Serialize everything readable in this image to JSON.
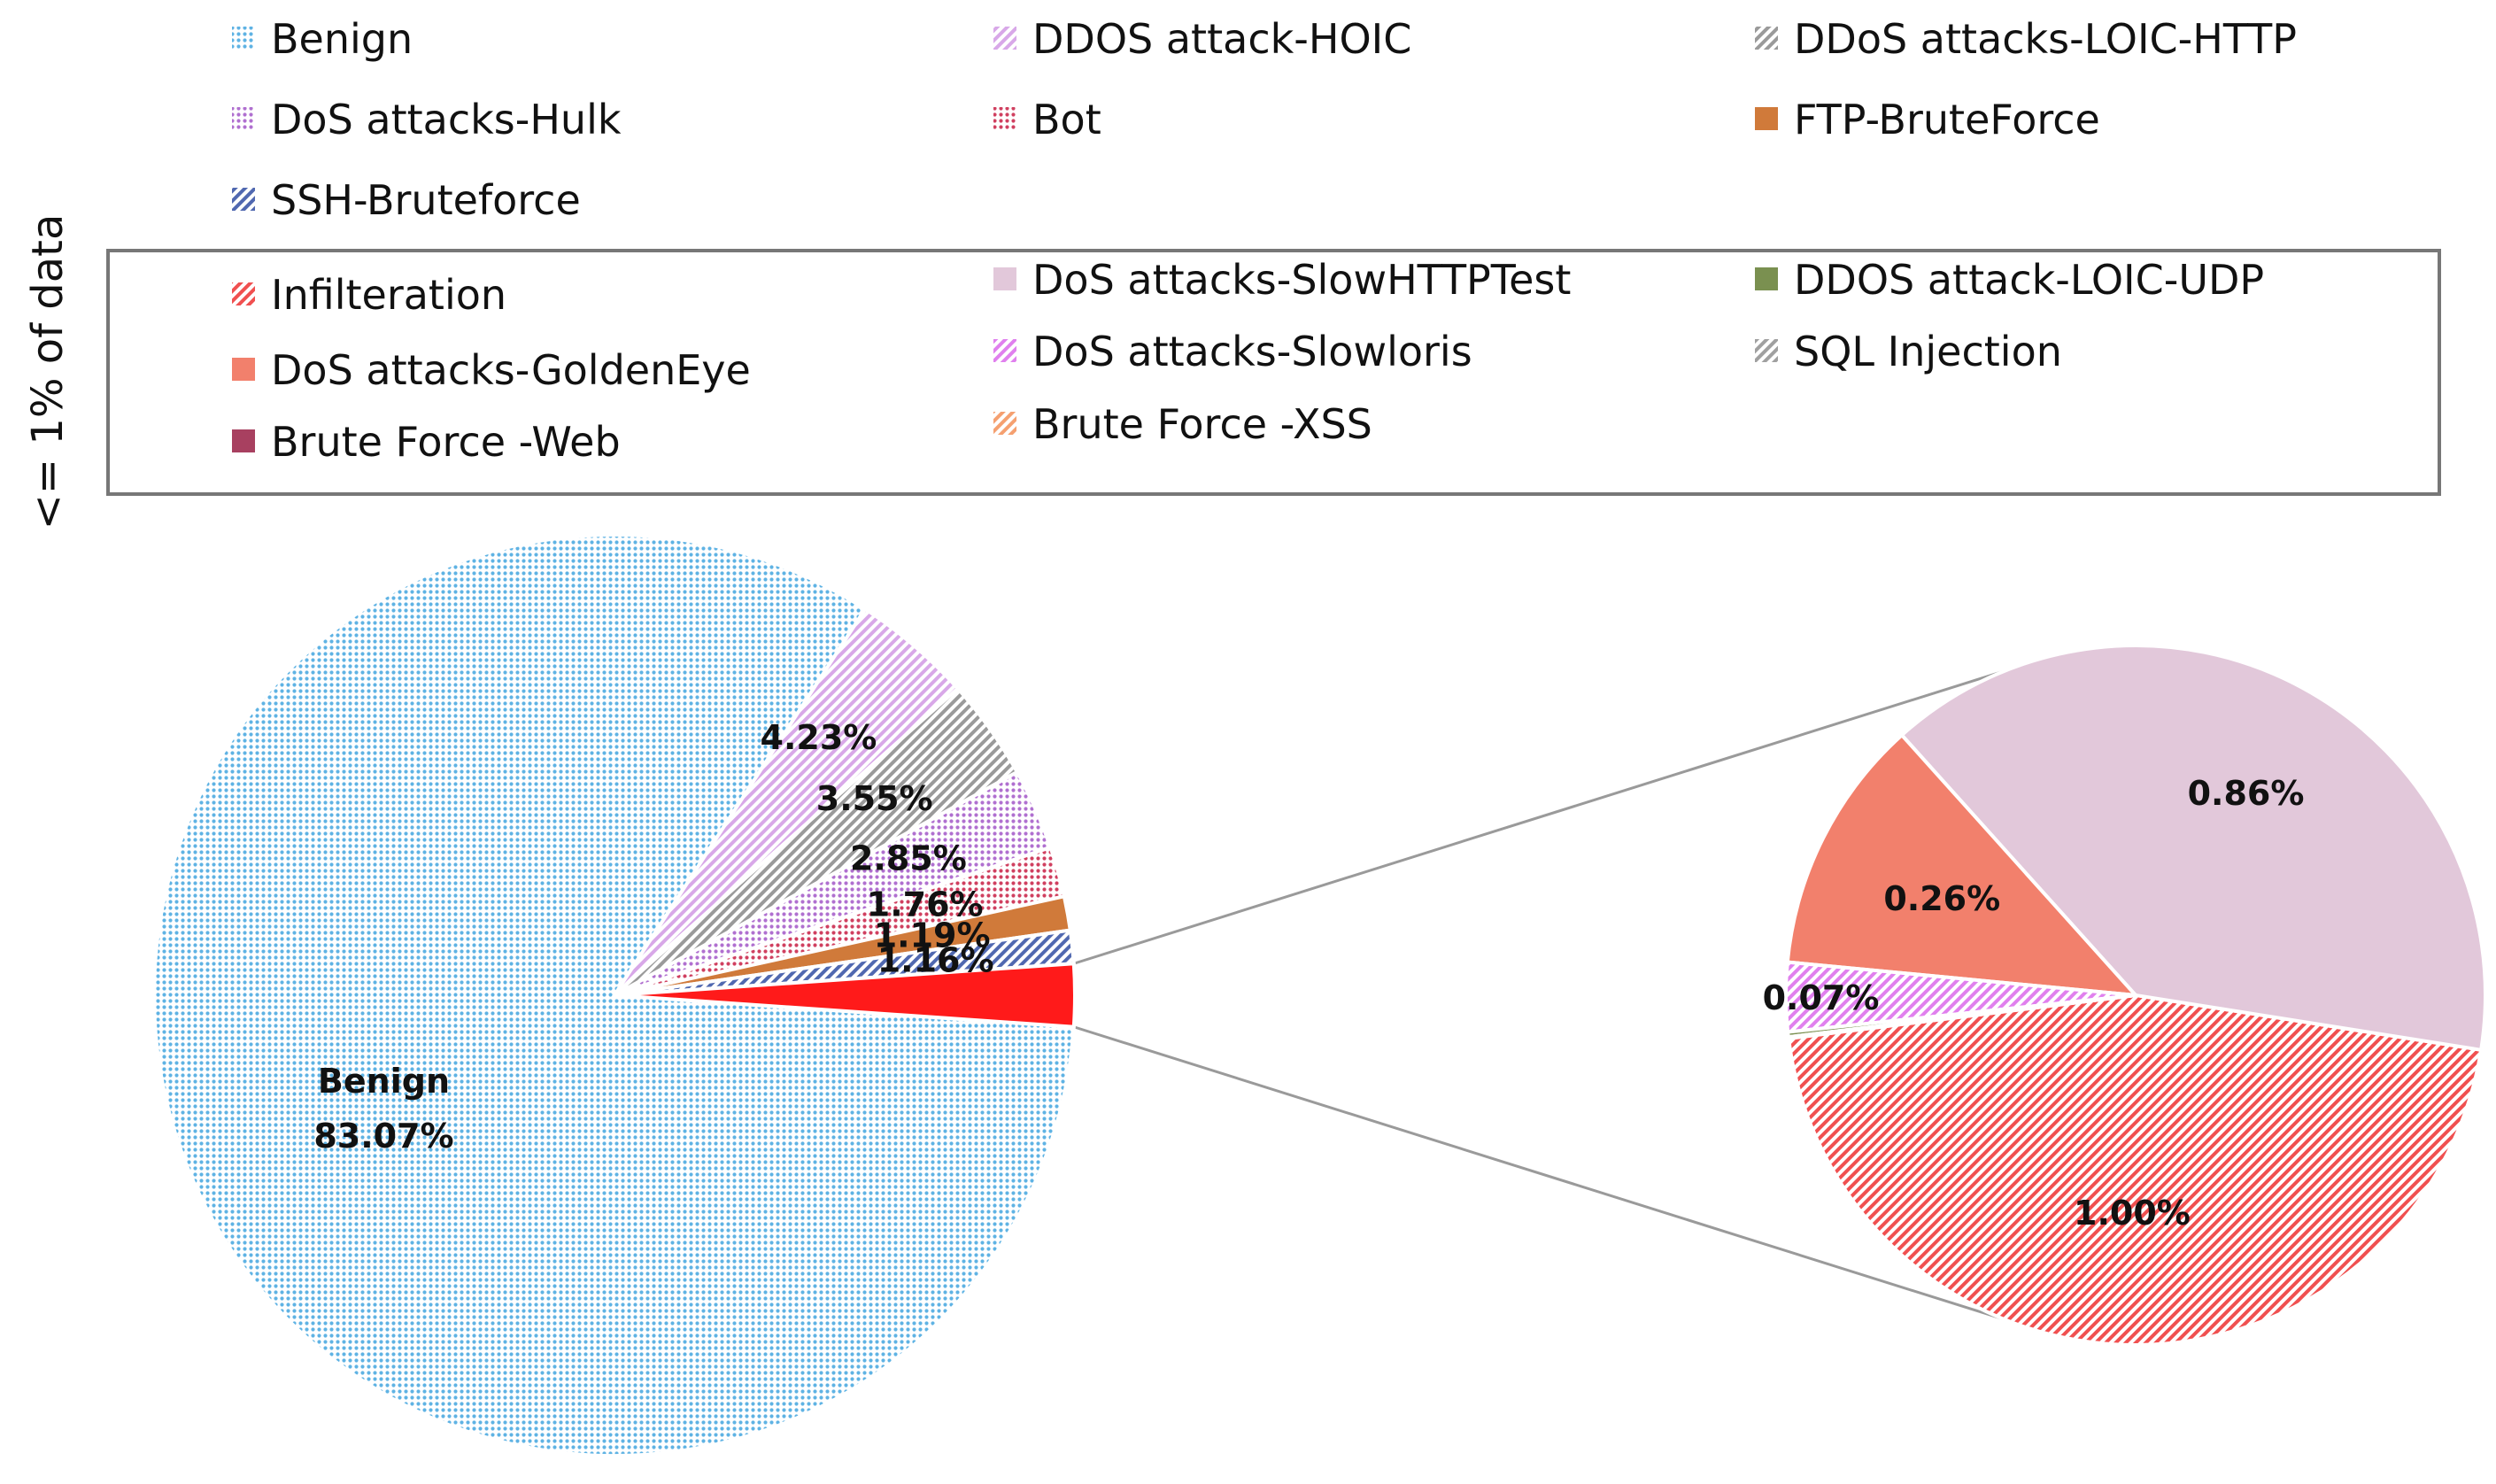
{
  "chart_data": {
    "type": "pie",
    "side_label": "<= 1% of data",
    "main_pie": {
      "slices": [
        {
          "key": "benign",
          "value": 83.07,
          "label": "Benign",
          "value_label": "83.07%",
          "color": "#5FB3E4",
          "pattern": "dots"
        },
        {
          "key": "hoic",
          "value": 4.23,
          "label": "DDOS attack-HOIC",
          "value_label": "4.23%",
          "color": "#D8A8E8",
          "pattern": "hatch"
        },
        {
          "key": "loic_http",
          "value": 3.55,
          "label": "DDoS attacks-LOIC-HTTP",
          "value_label": "3.55%",
          "color": "#9A9A9A",
          "pattern": "hatch"
        },
        {
          "key": "hulk",
          "value": 2.85,
          "label": "DoS attacks-Hulk",
          "value_label": "2.85%",
          "color": "#B070D0",
          "pattern": "dots"
        },
        {
          "key": "bot",
          "value": 1.76,
          "label": "Bot",
          "value_label": "1.76%",
          "color": "#D04060",
          "pattern": "dots"
        },
        {
          "key": "ftp",
          "value": 1.19,
          "label": "FTP-BruteForce",
          "value_label": "1.19%",
          "color": "#D07A3A",
          "pattern": "solid"
        },
        {
          "key": "ssh",
          "value": 1.16,
          "label": "SSH-Bruteforce",
          "value_label": "1.16%",
          "color": "#5068B0",
          "pattern": "hatch"
        },
        {
          "key": "other",
          "value": 2.19,
          "label": "",
          "value_label": "",
          "color": "#FF1A1A",
          "pattern": "solid"
        }
      ]
    },
    "sub_pie": {
      "slices": [
        {
          "key": "infilteration",
          "value": 1.0,
          "label": "Infilteration",
          "value_label": "1.00%",
          "color": "#F05050",
          "pattern": "hatch"
        },
        {
          "key": "slowhttp",
          "value": 0.86,
          "label": "DoS attacks-SlowHTTPTest",
          "value_label": "0.86%",
          "color": "#E2C8DA",
          "pattern": "solid"
        },
        {
          "key": "goldeneye",
          "value": 0.26,
          "label": "DoS attacks-GoldenEye",
          "value_label": "0.26%",
          "color": "#F2806C",
          "pattern": "solid"
        },
        {
          "key": "slowloris",
          "value": 0.07,
          "label": "DoS attacks-Slowloris",
          "value_label": "0.07%",
          "color": "#E080EE",
          "pattern": "hatch"
        },
        {
          "key": "loic_udp",
          "value": 0.005,
          "label": "DDOS attack-LOIC-UDP",
          "value_label": "",
          "color": "#7A9050",
          "pattern": "solid"
        },
        {
          "key": "sql",
          "value": 0.0005,
          "label": "SQL Injection",
          "value_label": "",
          "color": "#A0A0A0",
          "pattern": "hatch"
        },
        {
          "key": "bfweb",
          "value": 0.0005,
          "label": "Brute Force -Web",
          "value_label": "",
          "color": "#A84060",
          "pattern": "solid"
        },
        {
          "key": "bfxss",
          "value": 0.0005,
          "label": "Brute Force -XSS",
          "value_label": "",
          "color": "#F5A070",
          "pattern": "hatch"
        }
      ]
    },
    "legend": {
      "top": [
        {
          "key": "benign",
          "label": "Benign"
        },
        {
          "key": "hoic",
          "label": "DDOS attack-HOIC"
        },
        {
          "key": "loic_http",
          "label": "DDoS attacks-LOIC-HTTP"
        },
        {
          "key": "hulk",
          "label": "DoS attacks-Hulk"
        },
        {
          "key": "bot",
          "label": "Bot"
        },
        {
          "key": "ftp",
          "label": "FTP-BruteForce"
        },
        {
          "key": "ssh",
          "label": "SSH-Bruteforce"
        }
      ],
      "boxed": [
        {
          "key": "infilteration",
          "label": "Infilteration"
        },
        {
          "key": "slowhttp",
          "label": "DoS attacks-SlowHTTPTest"
        },
        {
          "key": "loic_udp",
          "label": "DDOS attack-LOIC-UDP"
        },
        {
          "key": "goldeneye",
          "label": "DoS attacks-GoldenEye"
        },
        {
          "key": "slowloris",
          "label": "DoS attacks-Slowloris"
        },
        {
          "key": "sql",
          "label": "SQL Injection"
        },
        {
          "key": "bfweb",
          "label": "Brute Force -Web"
        },
        {
          "key": "bfxss",
          "label": "Brute Force -XSS"
        }
      ]
    }
  }
}
